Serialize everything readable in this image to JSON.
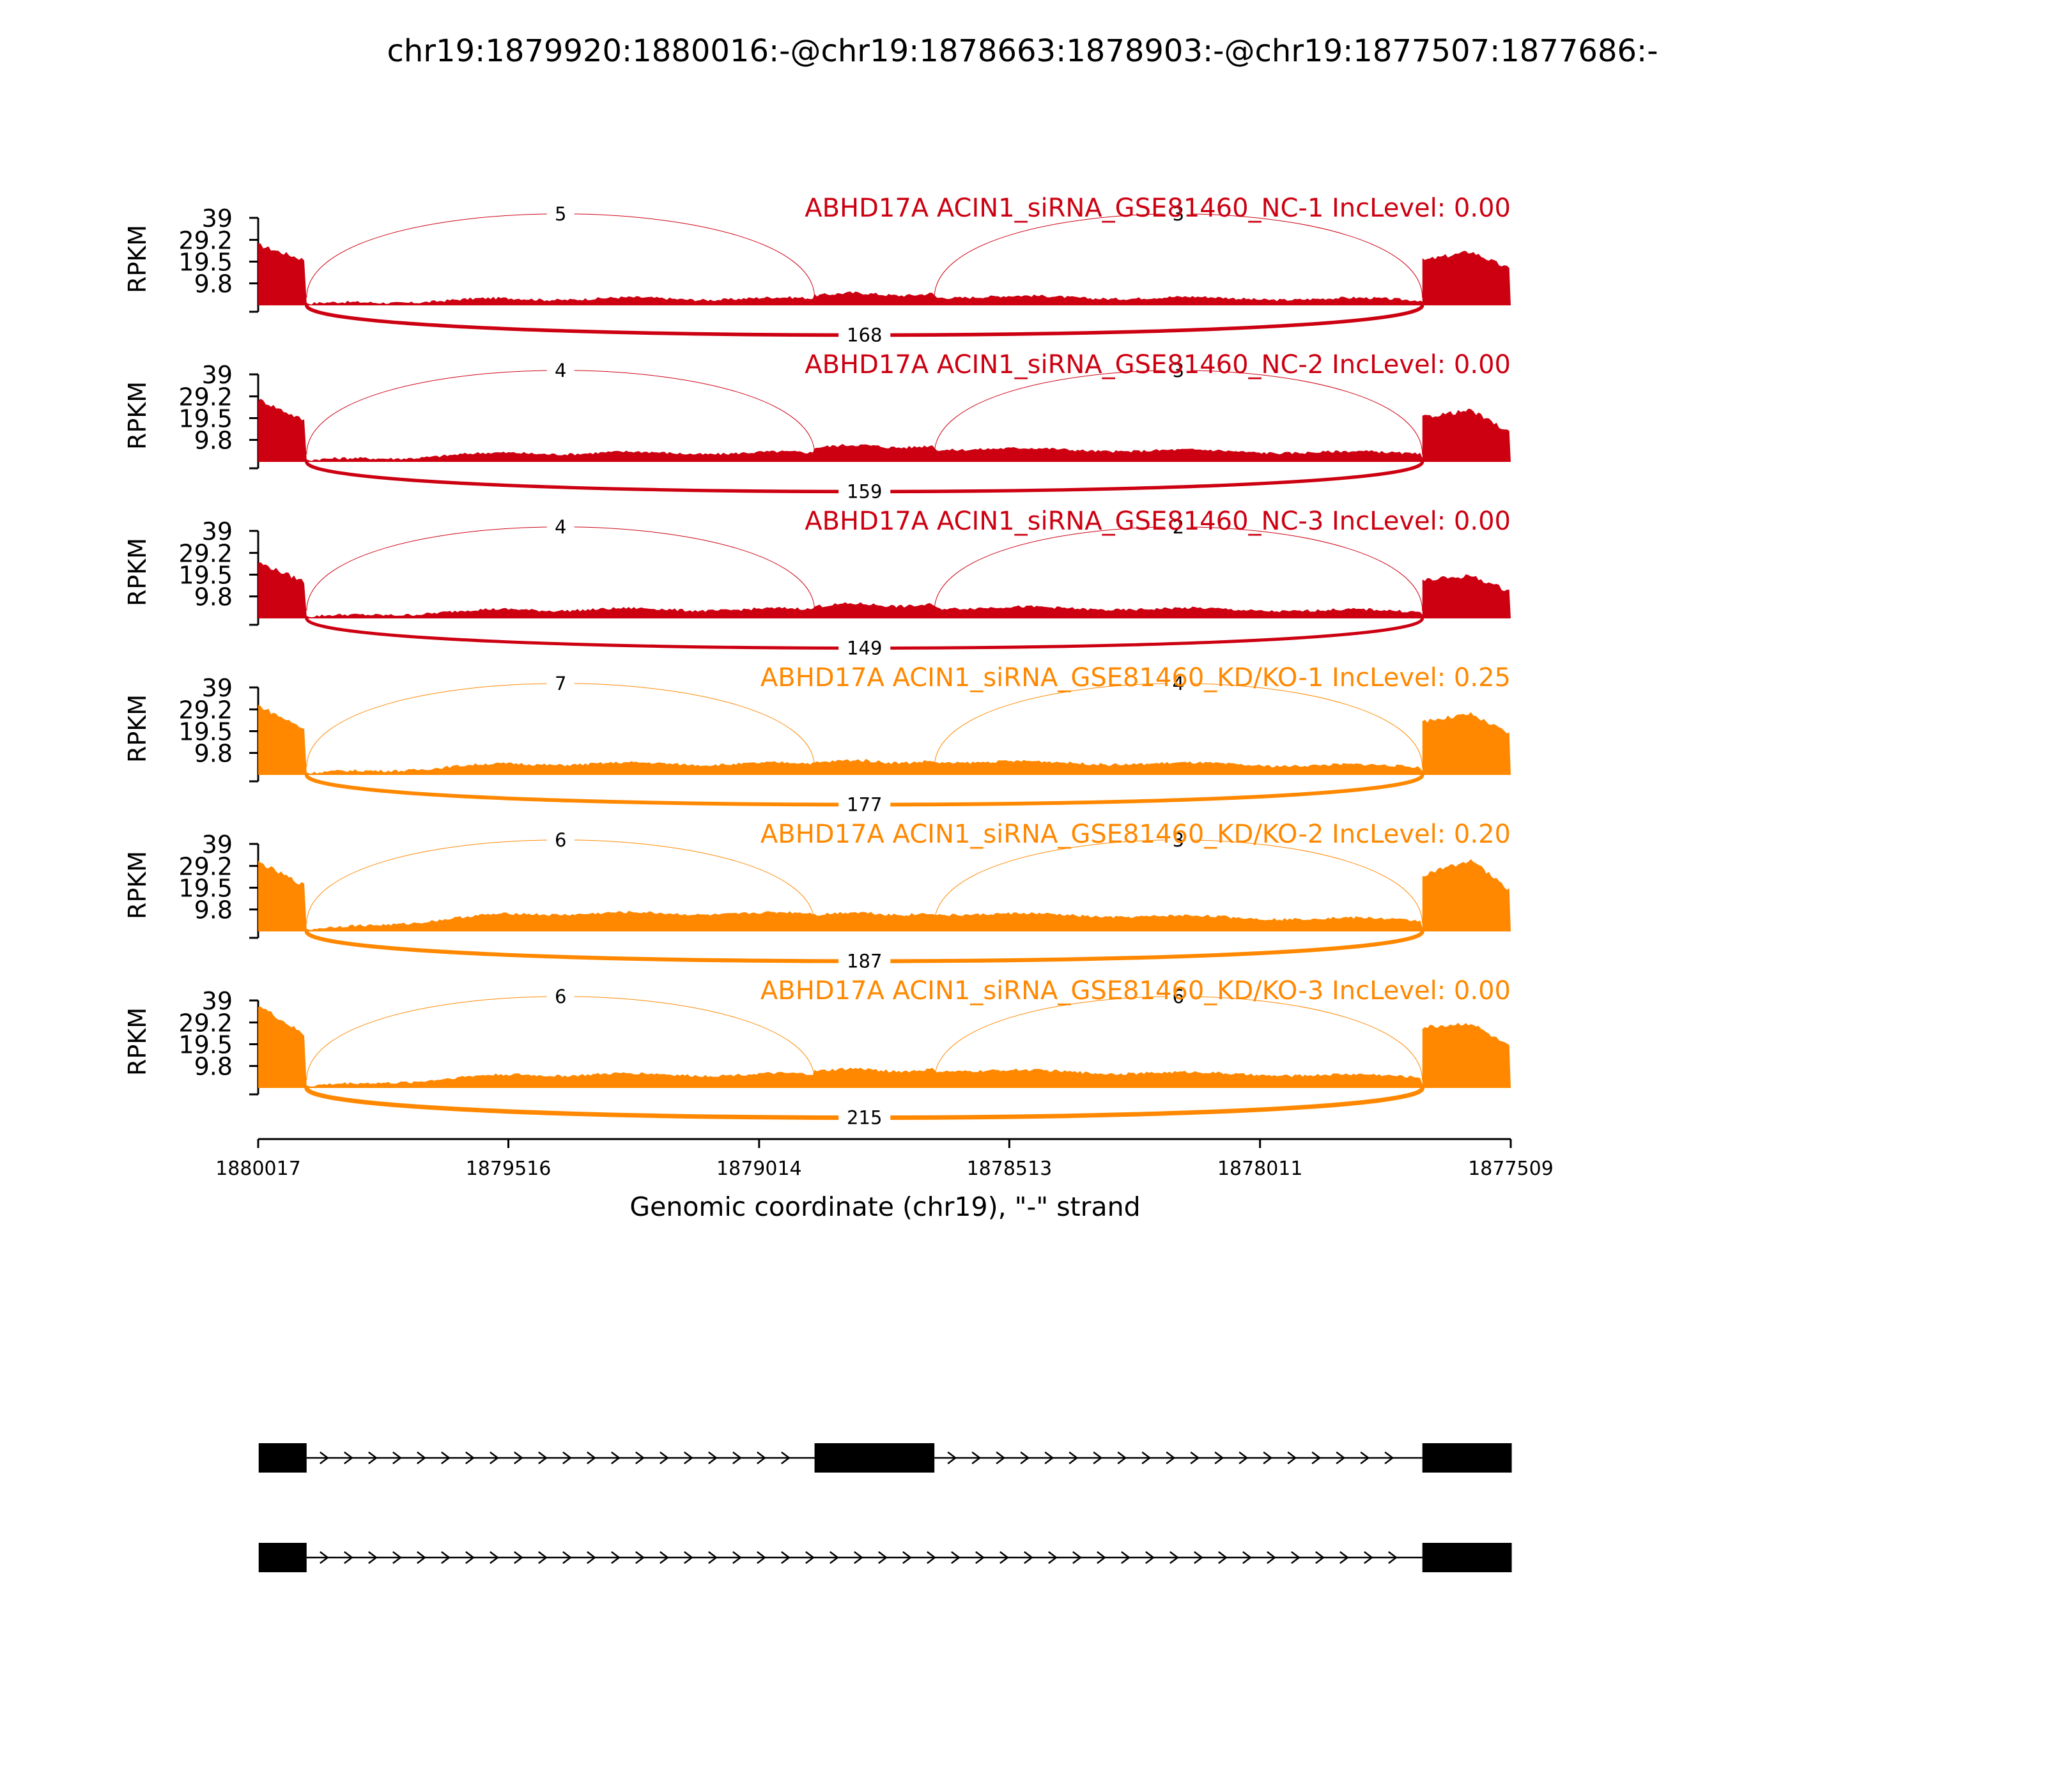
{
  "chart_data": {
    "type": "area",
    "title": "chr19:1879920:1880016:-@chr19:1878663:1878903:-@chr19:1877507:1877686:-",
    "xlabel": "Genomic coordinate (chr19), \"-\" strand",
    "ylabel": "RPKM",
    "xlim": [
      1880017,
      1877509
    ],
    "x_reversed": true,
    "x_ticks": [
      "1880017",
      "1879516",
      "1879014",
      "1878513",
      "1878011",
      "1877509"
    ],
    "y_ticks": [
      "39",
      "29.2",
      "19.5",
      "9.8"
    ],
    "ylim": [
      0,
      39
    ],
    "exons": [
      {
        "start": 1880016,
        "end": 1879920
      },
      {
        "start": 1878903,
        "end": 1878663
      },
      {
        "start": 1877686,
        "end": 1877507
      }
    ],
    "isoforms": [
      {
        "exons": [
          0,
          1,
          2
        ]
      },
      {
        "exons": [
          0,
          2
        ]
      }
    ],
    "series": [
      {
        "name": "ABHD17A ACIN1_siRNA_GSE81460_NC-1 IncLevel: 0.00",
        "group": "NC",
        "junctions": {
          "upstream": 5,
          "downstream": 3,
          "skipping": 168
        },
        "coverage": {
          "exon1_start": 27,
          "exon1_end": 20,
          "intron1": 3,
          "exon2": 5,
          "intron2": 4,
          "exon3_start": 20,
          "exon3_peak": 24,
          "exon3_end": 16
        }
      },
      {
        "name": "ABHD17A ACIN1_siRNA_GSE81460_NC-2 IncLevel: 0.00",
        "group": "NC",
        "junctions": {
          "upstream": 4,
          "downstream": 3,
          "skipping": 159
        },
        "coverage": {
          "exon1_start": 28,
          "exon1_end": 18,
          "intron1": 4,
          "exon2": 7,
          "intron2": 6,
          "exon3_start": 20,
          "exon3_peak": 23,
          "exon3_end": 13
        }
      },
      {
        "name": "ABHD17A ACIN1_siRNA_GSE81460_NC-3 IncLevel: 0.00",
        "group": "NC",
        "junctions": {
          "upstream": 4,
          "downstream": 2,
          "skipping": 149
        },
        "coverage": {
          "exon1_start": 25,
          "exon1_end": 16,
          "intron1": 4,
          "exon2": 6,
          "intron2": 5,
          "exon3_start": 17,
          "exon3_peak": 19,
          "exon3_end": 12
        }
      },
      {
        "name": "ABHD17A ACIN1_siRNA_GSE81460_KD/KO-1 IncLevel: 0.25",
        "group": "KD/KO",
        "junctions": {
          "upstream": 7,
          "downstream": 4,
          "skipping": 177
        },
        "coverage": {
          "exon1_start": 31,
          "exon1_end": 20,
          "intron1": 5,
          "exon2": 6,
          "intron2": 6,
          "exon3_start": 24,
          "exon3_peak": 27,
          "exon3_end": 18
        }
      },
      {
        "name": "ABHD17A ACIN1_siRNA_GSE81460_KD/KO-2 IncLevel: 0.20",
        "group": "KD/KO",
        "junctions": {
          "upstream": 6,
          "downstream": 3,
          "skipping": 187
        },
        "coverage": {
          "exon1_start": 31,
          "exon1_end": 20,
          "intron1": 8,
          "exon2": 8,
          "intron2": 8,
          "exon3_start": 25,
          "exon3_peak": 32,
          "exon3_end": 18
        }
      },
      {
        "name": "ABHD17A ACIN1_siRNA_GSE81460_KD/KO-3 IncLevel: 0.00",
        "group": "KD/KO",
        "junctions": {
          "upstream": 6,
          "downstream": 6,
          "skipping": 215
        },
        "coverage": {
          "exon1_start": 37,
          "exon1_end": 23,
          "intron1": 6,
          "exon2": 8,
          "intron2": 8,
          "exon3_start": 27,
          "exon3_peak": 29,
          "exon3_end": 18
        }
      }
    ],
    "colors": {
      "NC": "#cc0011",
      "KD/KO": "#ff8800"
    },
    "grid": false,
    "legend": "none"
  }
}
